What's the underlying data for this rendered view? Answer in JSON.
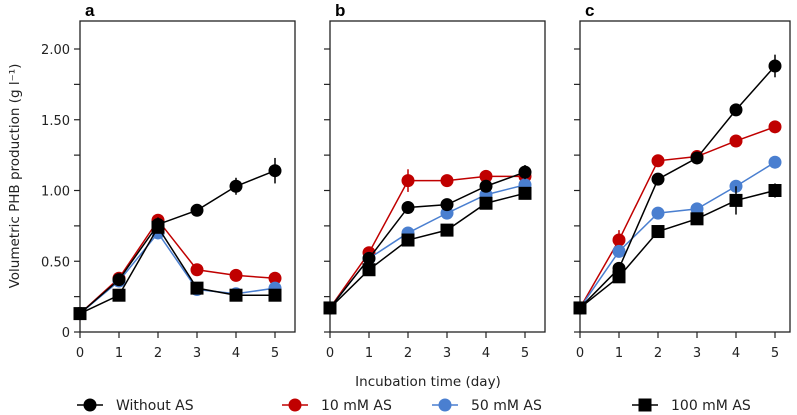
{
  "chart_data": {
    "type": "line",
    "ylabel": "Volumetric PHB production (g l⁻¹)",
    "xlabel": "Incubation time (day)",
    "x": [
      0,
      1,
      2,
      3,
      4,
      5
    ],
    "xticks": [
      "0",
      "1",
      "2",
      "3",
      "4",
      "5"
    ],
    "ylim": [
      0,
      2.2
    ],
    "yticks": [
      0,
      0.25,
      0.5,
      0.75,
      1.0,
      1.25,
      1.5,
      1.75,
      2.0
    ],
    "ytick_labels": [
      "0",
      "",
      "0.50",
      "",
      "1.00",
      "",
      "1.50",
      "",
      "2.00"
    ],
    "legend": {
      "placement": "bottom",
      "entries": [
        {
          "name": "Without AS",
          "color": "#000000",
          "marker": "circle"
        },
        {
          "name": "10 mM AS",
          "color": "#c00000",
          "marker": "circle"
        },
        {
          "name": "50 mM AS",
          "color": "#4a7fd0",
          "marker": "circle"
        },
        {
          "name": "100 mM AS",
          "color": "#000000",
          "marker": "square"
        }
      ]
    },
    "panels": [
      {
        "label": "a",
        "series": [
          {
            "name": "Without AS",
            "values": [
              0.13,
              0.37,
              0.76,
              0.86,
              1.03,
              1.14
            ],
            "err": [
              0,
              0.02,
              0.05,
              0.03,
              0.06,
              0.09
            ]
          },
          {
            "name": "10 mM AS",
            "values": [
              0.13,
              0.38,
              0.79,
              0.44,
              0.4,
              0.38
            ],
            "err": [
              0,
              0.03,
              0.04,
              0.02,
              0.02,
              0.02
            ]
          },
          {
            "name": "50 mM AS",
            "values": [
              0.13,
              0.36,
              0.7,
              0.3,
              0.27,
              0.31
            ],
            "err": [
              0,
              0.02,
              0.03,
              0.02,
              0.02,
              0.02
            ]
          },
          {
            "name": "100 mM AS",
            "values": [
              0.13,
              0.26,
              0.74,
              0.31,
              0.26,
              0.26
            ],
            "err": [
              0,
              0.02,
              0.03,
              0.02,
              0.02,
              0.02
            ]
          }
        ]
      },
      {
        "label": "b",
        "series": [
          {
            "name": "Without AS",
            "values": [
              0.17,
              0.52,
              0.88,
              0.9,
              1.03,
              1.13
            ],
            "err": [
              0,
              0.02,
              0.02,
              0.04,
              0.02,
              0.05
            ]
          },
          {
            "name": "10 mM AS",
            "values": [
              0.17,
              0.56,
              1.07,
              1.07,
              1.1,
              1.1
            ],
            "err": [
              0,
              0.02,
              0.08,
              0.02,
              0.02,
              0.02
            ]
          },
          {
            "name": "50 mM AS",
            "values": [
              0.17,
              0.52,
              0.7,
              0.84,
              0.97,
              1.04
            ],
            "err": [
              0,
              0.02,
              0.02,
              0.02,
              0.02,
              0.02
            ]
          },
          {
            "name": "100 mM AS",
            "values": [
              0.17,
              0.44,
              0.65,
              0.72,
              0.91,
              0.98
            ],
            "err": [
              0,
              0.02,
              0.02,
              0.02,
              0.03,
              0.02
            ]
          }
        ]
      },
      {
        "label": "c",
        "series": [
          {
            "name": "Without AS",
            "values": [
              0.17,
              0.45,
              1.08,
              1.23,
              1.57,
              1.88
            ],
            "err": [
              0,
              0.04,
              0.02,
              0.02,
              0.02,
              0.08
            ]
          },
          {
            "name": "10 mM AS",
            "values": [
              0.17,
              0.65,
              1.21,
              1.24,
              1.35,
              1.45
            ],
            "err": [
              0,
              0.07,
              0.02,
              0.02,
              0.02,
              0.02
            ]
          },
          {
            "name": "50 mM AS",
            "values": [
              0.17,
              0.57,
              0.84,
              0.87,
              1.03,
              1.2
            ],
            "err": [
              0,
              0.04,
              0.02,
              0.02,
              0.02,
              0.02
            ]
          },
          {
            "name": "100 mM AS",
            "values": [
              0.17,
              0.39,
              0.71,
              0.8,
              0.93,
              1.0
            ],
            "err": [
              0,
              0.02,
              0.02,
              0.04,
              0.1,
              0.05
            ]
          }
        ]
      }
    ]
  }
}
